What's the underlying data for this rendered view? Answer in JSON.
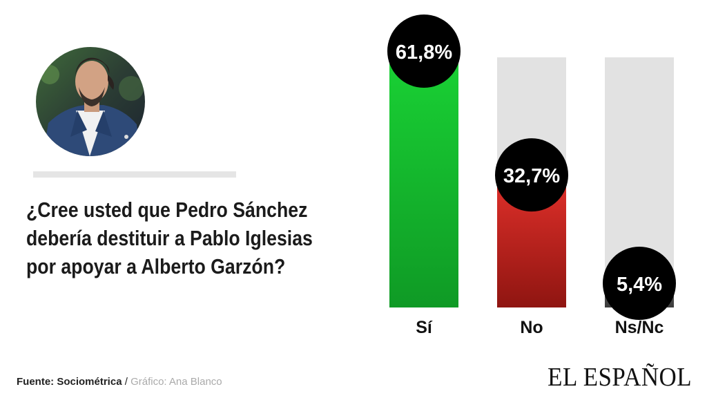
{
  "question": "¿Cree usted que Pedro Sánchez debería destituir a Pablo Iglesias por apoyar a Alberto Garzón?",
  "footer": {
    "source": "Fuente: Sociométrica",
    "separator": " / ",
    "credit": "Gráfico: Ana Blanco"
  },
  "brand": "EL ESPAÑOL",
  "colors": {
    "track": "#e2e2e2",
    "bubble": "#000000",
    "label": "#111111"
  },
  "chart_data": {
    "type": "bar",
    "title": "¿Cree usted que Pedro Sánchez debería destituir a Pablo Iglesias por apoyar a Alberto Garzón?",
    "categories": [
      "Sí",
      "No",
      "Ns/Nc"
    ],
    "values": [
      61.8,
      32.7,
      5.4
    ],
    "value_labels": [
      "61,8%",
      "32,7%",
      "5,4%"
    ],
    "bar_colors": [
      [
        "#19d034",
        "#0f9a25"
      ],
      [
        "#e0302a",
        "#8f1511"
      ],
      [
        "#5a5a5a",
        "#3c3c3c"
      ]
    ],
    "ylim": [
      0,
      100
    ],
    "xlabel": "",
    "ylabel": ""
  }
}
